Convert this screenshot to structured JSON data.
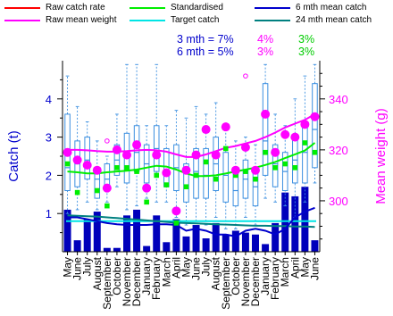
{
  "legend": {
    "raw_rate": {
      "label": "Raw catch rate",
      "color": "#ff0000"
    },
    "raw_weight": {
      "label": "Raw mean weight",
      "color": "#ff00ff"
    },
    "standardised": {
      "label": "Standardised",
      "color": "#00ee00"
    },
    "target": {
      "label": "Target catch",
      "color": "#00e5e5"
    },
    "mean6": {
      "label": "6 mth mean catch",
      "color": "#0000cc"
    },
    "mean24": {
      "label": "24 mth mean catch",
      "color": "#008080"
    }
  },
  "summary": {
    "row1": {
      "label": "3 mth = 7%",
      "v1": "4%",
      "v2": "3%"
    },
    "row2": {
      "label": "6 mth = 5%",
      "v1": "3%",
      "v2": "3%"
    }
  },
  "chart_data": {
    "type": "bar",
    "ylabel_left": "Catch (t)",
    "ylabel_right": "Mean weight (g)",
    "ylim_left": [
      0,
      5
    ],
    "ylim_right": [
      280,
      355
    ],
    "left_ticks": [
      "1",
      "2",
      "3",
      "4"
    ],
    "right_ticks": [
      "300",
      "320",
      "340"
    ],
    "categories": [
      "May",
      "June",
      "July",
      "August",
      "September",
      "October",
      "November",
      "December",
      "January",
      "February",
      "March",
      "April",
      "May",
      "June",
      "July",
      "August",
      "September",
      "October",
      "November",
      "December",
      "January",
      "February",
      "March",
      "April",
      "May",
      "June"
    ],
    "catch": [
      1.1,
      0.3,
      0.85,
      1.05,
      0.1,
      0.1,
      0.95,
      1.1,
      0.15,
      0.95,
      0.25,
      0.85,
      0.4,
      0.7,
      0.35,
      0.75,
      0.45,
      0.55,
      0.5,
      0.45,
      0.2,
      0.75,
      1.55,
      1.45,
      1.7,
      0.3
    ],
    "boxplots": [
      {
        "whisker_low": 1.0,
        "q1": 1.6,
        "median": 2.2,
        "q3": 3.6,
        "whisker_high": 4.6
      },
      {
        "whisker_low": 1.1,
        "q1": 1.7,
        "median": 2.3,
        "q3": 2.9,
        "whisker_high": 3.8
      },
      {
        "whisker_low": 1.3,
        "q1": 1.9,
        "median": 2.4,
        "q3": 3.0,
        "whisker_high": 3.4
      },
      {
        "whisker_low": 1.1,
        "q1": 1.4,
        "median": 1.9,
        "q3": 2.2,
        "whisker_high": 2.9
      },
      {
        "whisker_low": 1.3,
        "q1": 1.6,
        "median": 1.9,
        "q3": 2.3,
        "whisker_high": 2.5
      },
      {
        "whisker_low": 1.7,
        "q1": 2.0,
        "median": 2.4,
        "q3": 2.8,
        "whisker_high": 3.6
      },
      {
        "whisker_low": 1.1,
        "q1": 1.8,
        "median": 2.5,
        "q3": 3.1,
        "whisker_high": 4.9
      },
      {
        "whisker_low": 1.2,
        "q1": 2.1,
        "median": 2.6,
        "q3": 3.3,
        "whisker_high": 4.9
      },
      {
        "whisker_low": 1.4,
        "q1": 1.8,
        "median": 2.3,
        "q3": 2.8,
        "whisker_high": 3.3
      },
      {
        "whisker_low": 1.3,
        "q1": 2.1,
        "median": 2.7,
        "q3": 3.3,
        "whisker_high": 4.9
      },
      {
        "whisker_low": 1.3,
        "q1": 1.7,
        "median": 2.1,
        "q3": 2.7,
        "whisker_high": 3.3
      },
      {
        "whisker_low": 0.9,
        "q1": 1.6,
        "median": 2.2,
        "q3": 2.8,
        "whisker_high": 3.7
      },
      {
        "whisker_low": 0.7,
        "q1": 1.3,
        "median": 1.7,
        "q3": 2.3,
        "whisker_high": 3.5
      },
      {
        "whisker_low": 0.8,
        "q1": 1.4,
        "median": 2.1,
        "q3": 2.7,
        "whisker_high": 3.8
      },
      {
        "whisker_low": 0.7,
        "q1": 1.4,
        "median": 2.0,
        "q3": 2.7,
        "whisker_high": 3.6
      },
      {
        "whisker_low": 0.9,
        "q1": 1.6,
        "median": 2.3,
        "q3": 3.0,
        "whisker_high": 3.9
      },
      {
        "whisker_low": 0.6,
        "q1": 1.3,
        "median": 2.0,
        "q3": 2.6,
        "whisker_high": 3.3
      },
      {
        "whisker_low": 0.6,
        "q1": 1.2,
        "median": 1.6,
        "q3": 2.2,
        "whisker_high": 2.9
      },
      {
        "whisker_low": 0.9,
        "q1": 1.4,
        "median": 1.9,
        "q3": 2.4,
        "whisker_high": 3.0
      },
      {
        "whisker_low": 0.7,
        "q1": 1.2,
        "median": 1.7,
        "q3": 2.2,
        "whisker_high": 2.8
      },
      {
        "whisker_low": 1.4,
        "q1": 2.0,
        "median": 2.9,
        "q3": 4.4,
        "whisker_high": 4.9
      },
      {
        "whisker_low": 1.3,
        "q1": 1.7,
        "median": 2.3,
        "q3": 2.8,
        "whisker_high": 3.6
      },
      {
        "whisker_low": 1.2,
        "q1": 1.6,
        "median": 2.1,
        "q3": 2.6,
        "whisker_high": 3.3
      },
      {
        "whisker_low": 0.9,
        "q1": 1.8,
        "median": 2.4,
        "q3": 3.0,
        "whisker_high": 4.0
      },
      {
        "whisker_low": 1.3,
        "q1": 1.8,
        "median": 2.6,
        "q3": 3.3,
        "whisker_high": 4.6
      },
      {
        "whisker_low": 1.8,
        "q1": 2.2,
        "median": 3.2,
        "q3": 4.4,
        "whisker_high": 4.9
      }
    ],
    "outliers": [
      {
        "index": 4,
        "value": 2.9
      },
      {
        "index": 18,
        "value": 4.6
      }
    ],
    "raw_mean_weight": [
      319,
      316,
      314,
      312,
      305,
      320,
      318,
      322,
      305,
      318,
      311,
      296,
      312,
      318,
      328,
      318,
      329,
      312,
      321,
      312,
      334,
      319,
      326,
      325,
      330,
      333
    ],
    "standardised": [
      2.3,
      1.55,
      2.3,
      1.6,
      1.2,
      2.2,
      2.2,
      2.1,
      1.3,
      2.0,
      1.75,
      0.75,
      1.7,
      2.0,
      2.35,
      1.9,
      2.7,
      2.0,
      2.1,
      1.9,
      2.6,
      2.2,
      2.3,
      2.2,
      2.85,
      2.6
    ],
    "raw_weight_trend": [
      320,
      320,
      319.8,
      319.5,
      319.3,
      319.3,
      319.5,
      319.8,
      320,
      319.8,
      319.3,
      318.2,
      317.2,
      317.2,
      318.2,
      319.5,
      320.8,
      321.5,
      322.5,
      323.5,
      325,
      326.8,
      328.8,
      330.3,
      331.8,
      334
    ],
    "standardised_trend": [
      2.1,
      2.08,
      2.05,
      2.05,
      2.08,
      2.1,
      2.12,
      2.15,
      2.2,
      2.25,
      2.23,
      2.15,
      2.05,
      1.98,
      1.98,
      2.0,
      2.05,
      2.1,
      2.15,
      2.2,
      2.27,
      2.35,
      2.45,
      2.55,
      2.65,
      2.85
    ],
    "mean6": [
      0.9,
      0.9,
      0.85,
      0.8,
      0.75,
      0.72,
      0.7,
      0.7,
      0.7,
      0.72,
      0.72,
      0.7,
      0.55,
      0.6,
      0.55,
      0.45,
      0.45,
      0.4,
      0.55,
      0.6,
      0.55,
      0.45,
      0.6,
      0.9,
      1.05,
      1.15
    ],
    "mean24": [
      0.95,
      0.94,
      0.93,
      0.92,
      0.9,
      0.88,
      0.86,
      0.84,
      0.82,
      0.8,
      0.78,
      0.76,
      0.75,
      0.74,
      0.73,
      0.72,
      0.71,
      0.7,
      0.69,
      0.68,
      0.68,
      0.67,
      0.67,
      0.66,
      0.66,
      0.65
    ],
    "target": 0.8
  }
}
